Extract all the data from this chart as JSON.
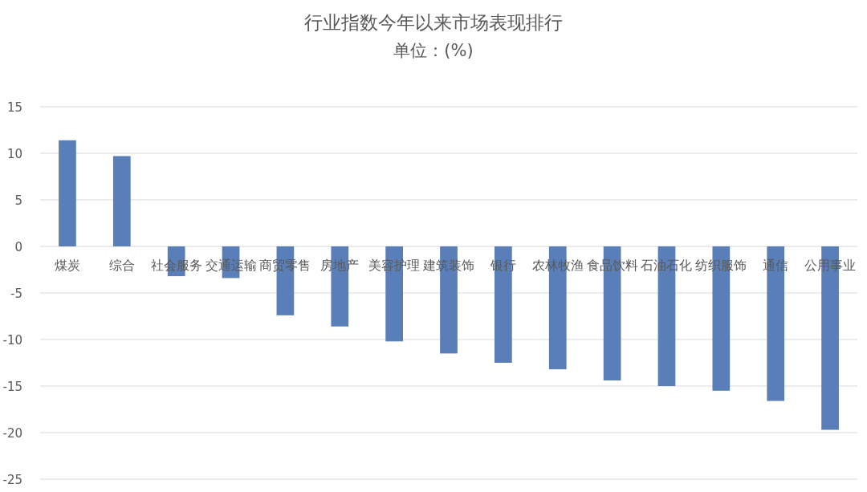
{
  "chart_data": {
    "type": "bar",
    "title": "行业指数今年以来市场表现排行",
    "subtitle": "单位：(%)",
    "categories": [
      "煤炭",
      "综合",
      "社会服务",
      "交通运输",
      "商贸零售",
      "房地产",
      "美容护理",
      "建筑装饰",
      "银行",
      "农林牧渔",
      "食品饮料",
      "石油石化",
      "纺织服饰",
      "通信",
      "公用事业"
    ],
    "values": [
      11.4,
      9.7,
      -3.2,
      -3.4,
      -7.4,
      -8.6,
      -10.2,
      -11.5,
      -12.5,
      -13.2,
      -14.4,
      -15.0,
      -15.5,
      -16.6,
      -19.7
    ],
    "color": "#5a7fb8",
    "ylim": [
      -25,
      15
    ],
    "yticks": [
      -25,
      -20,
      -15,
      -10,
      -5,
      0,
      5,
      10,
      15
    ],
    "grid": "y"
  }
}
